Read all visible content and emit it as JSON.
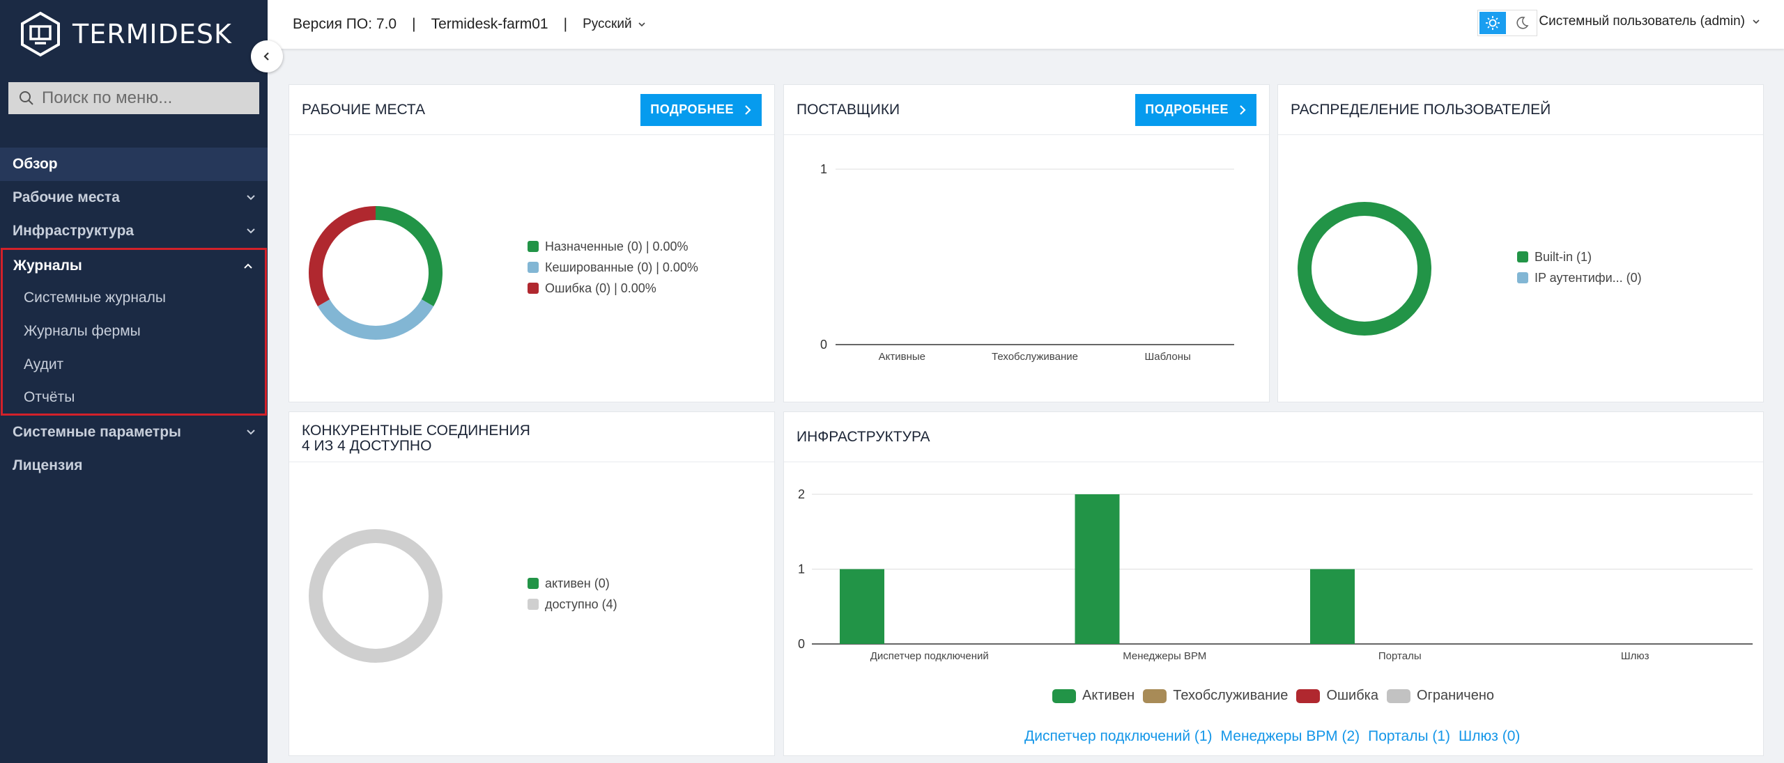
{
  "app": {
    "logo_text": "TERMIDESK"
  },
  "search": {
    "placeholder": "Поиск по меню..."
  },
  "nav": {
    "overview": "Обзор",
    "workplaces": "Рабочие места",
    "infrastructure": "Инфраструктура",
    "logs": "Журналы",
    "logs_sub": [
      "Системные журналы",
      "Журналы фермы",
      "Аудит",
      "Отчёты"
    ],
    "system_params": "Системные параметры",
    "license": "Лицензия"
  },
  "header": {
    "version": "Версия ПО: 7.0",
    "farm": "Termidesk-farm01",
    "separator": "|",
    "language": "Русский",
    "user": "Системный пользователь (admin)"
  },
  "colors": {
    "accent": "#069bee",
    "green": "#229447",
    "blue": "#82b6d4",
    "red": "#b0282f",
    "grey": "#cfcfcf",
    "tan": "#a88b57",
    "sidebar": "#1b2a44",
    "highlight": "#d3212a"
  },
  "workplaces_card": {
    "title": "РАБОЧИЕ МЕСТА",
    "button": "ПОДРОБНЕЕ",
    "legend": [
      "Назначенные (0) | 0.00%",
      "Кешированные (0) | 0.00%",
      "Ошибка (0) | 0.00%"
    ]
  },
  "providers_card": {
    "title": "ПОСТАВЩИКИ",
    "button": "ПОДРОБНЕЕ"
  },
  "users_card": {
    "title": "РАСПРЕДЕЛЕНИЕ ПОЛЬЗОВАТЕЛЕЙ",
    "legend": [
      "Built-in (1)",
      "IP аутентифи... (0)"
    ]
  },
  "connections_card": {
    "title_line1": "КОНКУРЕНТНЫЕ СОЕДИНЕНИЯ",
    "title_line2": "4 ИЗ 4 ДОСТУПНО",
    "legend": [
      "активен (0)",
      "доступно (4)"
    ]
  },
  "infrastructure_card": {
    "title": "ИНФРАСТРУКТУРА",
    "legend": [
      "Активен",
      "Техобслуживание",
      "Ошибка",
      "Ограничено"
    ],
    "links": [
      "Диспетчер подключений (1)",
      "Менеджеры ВРМ (2)",
      "Порталы (1)",
      "Шлюз (0)"
    ]
  },
  "chart_data": [
    {
      "type": "pie",
      "title": "РАБОЧИЕ МЕСТА",
      "categories": [
        "Назначенные",
        "Кешированные",
        "Ошибка"
      ],
      "values": [
        0,
        0,
        0
      ],
      "display_shares": [
        0.3333,
        0.3333,
        0.3334
      ],
      "legend_placement": "right"
    },
    {
      "type": "bar",
      "title": "ПОСТАВЩИКИ",
      "categories": [
        "Активные",
        "Техобслуживание",
        "Шаблоны"
      ],
      "values": [
        0,
        0,
        0
      ],
      "ylim": [
        0,
        1
      ],
      "yticks": [
        "0",
        "1"
      ],
      "grid": true
    },
    {
      "type": "pie",
      "title": "РАСПРЕДЕЛЕНИЕ ПОЛЬЗОВАТЕЛЕЙ",
      "categories": [
        "Built-in",
        "IP аутентифи..."
      ],
      "values": [
        1,
        0
      ],
      "legend_placement": "right"
    },
    {
      "type": "pie",
      "title": "КОНКУРЕНТНЫЕ СОЕДИНЕНИЯ",
      "categories": [
        "активен",
        "доступно"
      ],
      "values": [
        0,
        4
      ],
      "legend_placement": "right"
    },
    {
      "type": "bar",
      "title": "ИНФРАСТРУКТУРА",
      "categories": [
        "Диспетчер подключений",
        "Менеджеры ВРМ",
        "Порталы",
        "Шлюз"
      ],
      "series": [
        {
          "name": "Активен",
          "values": [
            1,
            2,
            1,
            0
          ]
        },
        {
          "name": "Техобслуживание",
          "values": [
            0,
            0,
            0,
            0
          ]
        },
        {
          "name": "Ошибка",
          "values": [
            0,
            0,
            0,
            0
          ]
        },
        {
          "name": "Ограничено",
          "values": [
            0,
            0,
            0,
            0
          ]
        }
      ],
      "ylim": [
        0,
        2
      ],
      "yticks": [
        "0",
        "1",
        "2"
      ],
      "grid": true,
      "legend_placement": "bottom"
    }
  ]
}
